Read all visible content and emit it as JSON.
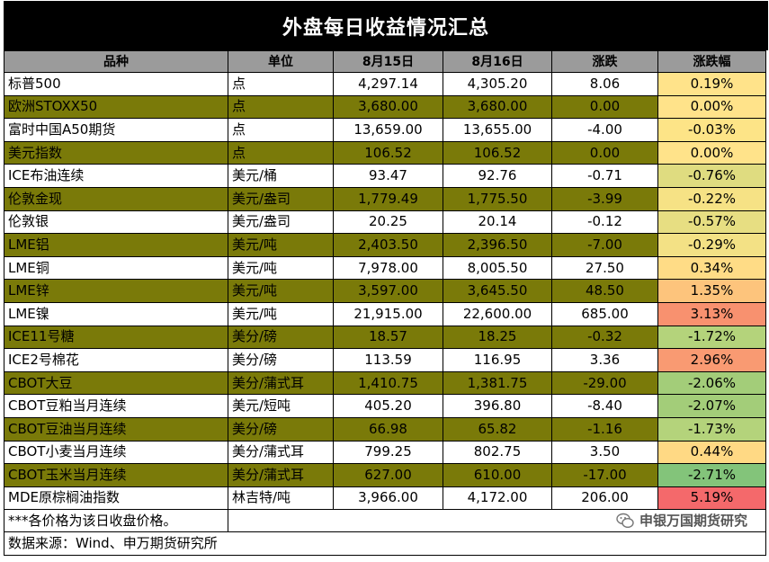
{
  "title": "外盘每日收益情况汇总",
  "headers": [
    "品种",
    "单位",
    "8月15日",
    "8月16日",
    "涨跌",
    "涨跌幅"
  ],
  "rows": [
    {
      "name": "标普500",
      "unit": "点",
      "d1": "4,297.14",
      "d2": "4,305.20",
      "chg": "8.06",
      "pct": "0.19%",
      "color": "#ffe38a"
    },
    {
      "name": "欧洲STOXX50",
      "unit": "点",
      "d1": "3,680.00",
      "d2": "3,680.00",
      "chg": "0.00",
      "pct": "0.00%",
      "color": "#ffe38a"
    },
    {
      "name": "富时中国A50期货",
      "unit": "点",
      "d1": "13,659.00",
      "d2": "13,655.00",
      "chg": "-4.00",
      "pct": "-0.03%",
      "color": "#fde487"
    },
    {
      "name": "美元指数",
      "unit": "点",
      "d1": "106.52",
      "d2": "106.52",
      "chg": "0.00",
      "pct": "0.00%",
      "color": "#ffe38a"
    },
    {
      "name": "ICE布油连续",
      "unit": "美元/桶",
      "d1": "93.47",
      "d2": "92.76",
      "chg": "-0.71",
      "pct": "-0.76%",
      "color": "#dfdc80"
    },
    {
      "name": "伦敦金现",
      "unit": "美元/盎司",
      "d1": "1,779.49",
      "d2": "1,775.50",
      "chg": "-3.99",
      "pct": "-0.22%",
      "color": "#f6e285"
    },
    {
      "name": "伦敦银",
      "unit": "美元/盎司",
      "d1": "20.25",
      "d2": "20.14",
      "chg": "-0.12",
      "pct": "-0.57%",
      "color": "#e7de82"
    },
    {
      "name": "LME铝",
      "unit": "美元/吨",
      "d1": "2,403.50",
      "d2": "2,396.50",
      "chg": "-7.00",
      "pct": "-0.29%",
      "color": "#f3e185"
    },
    {
      "name": "LME铜",
      "unit": "美元/吨",
      "d1": "7,978.00",
      "d2": "8,005.50",
      "chg": "27.50",
      "pct": "0.34%",
      "color": "#ffdc86"
    },
    {
      "name": "LME锌",
      "unit": "美元/吨",
      "d1": "3,597.00",
      "d2": "3,645.50",
      "chg": "48.50",
      "pct": "1.35%",
      "color": "#fdc47c"
    },
    {
      "name": "LME镍",
      "unit": "美元/吨",
      "d1": "21,915.00",
      "d2": "22,600.00",
      "chg": "685.00",
      "pct": "3.13%",
      "color": "#f8916f"
    },
    {
      "name": "ICE11号糖",
      "unit": "美分/磅",
      "d1": "18.57",
      "d2": "18.25",
      "chg": "-0.32",
      "pct": "-1.72%",
      "color": "#b4d37b"
    },
    {
      "name": "ICE2号棉花",
      "unit": "美分/磅",
      "d1": "113.59",
      "d2": "116.95",
      "chg": "3.36",
      "pct": "2.96%",
      "color": "#f99a72"
    },
    {
      "name": "CBOT大豆",
      "unit": "美分/蒲式耳",
      "d1": "1,410.75",
      "d2": "1,381.75",
      "chg": "-29.00",
      "pct": "-2.06%",
      "color": "#a3cd79"
    },
    {
      "name": "CBOT豆粕当月连续",
      "unit": "美元/短吨",
      "d1": "405.20",
      "d2": "396.80",
      "chg": "-8.40",
      "pct": "-2.07%",
      "color": "#a3cd79"
    },
    {
      "name": "CBOT豆油当月连续",
      "unit": "美分/磅",
      "d1": "66.98",
      "d2": "65.82",
      "chg": "-1.16",
      "pct": "-1.73%",
      "color": "#b4d37b"
    },
    {
      "name": "CBOT小麦当月连续",
      "unit": "美分/蒲式耳",
      "d1": "799.25",
      "d2": "802.75",
      "chg": "3.50",
      "pct": "0.44%",
      "color": "#ffd984"
    },
    {
      "name": "CBOT玉米当月连续",
      "unit": "美分/蒲式耳",
      "d1": "627.00",
      "d2": "610.00",
      "chg": "-17.00",
      "pct": "-2.71%",
      "color": "#83c47a"
    },
    {
      "name": "MDE原棕榈油指数",
      "unit": "林吉特/吨",
      "d1": "3,966.00",
      "d2": "4,172.00",
      "chg": "206.00",
      "pct": "5.19%",
      "color": "#f4696b"
    }
  ],
  "footnote": "***各价格为该日收盘价格。",
  "watermark": "申银万国期货研究",
  "source": "数据来源：Wind、申万期货研究所",
  "band_color": "#7a7a09",
  "header_color": "#9b9b9b"
}
